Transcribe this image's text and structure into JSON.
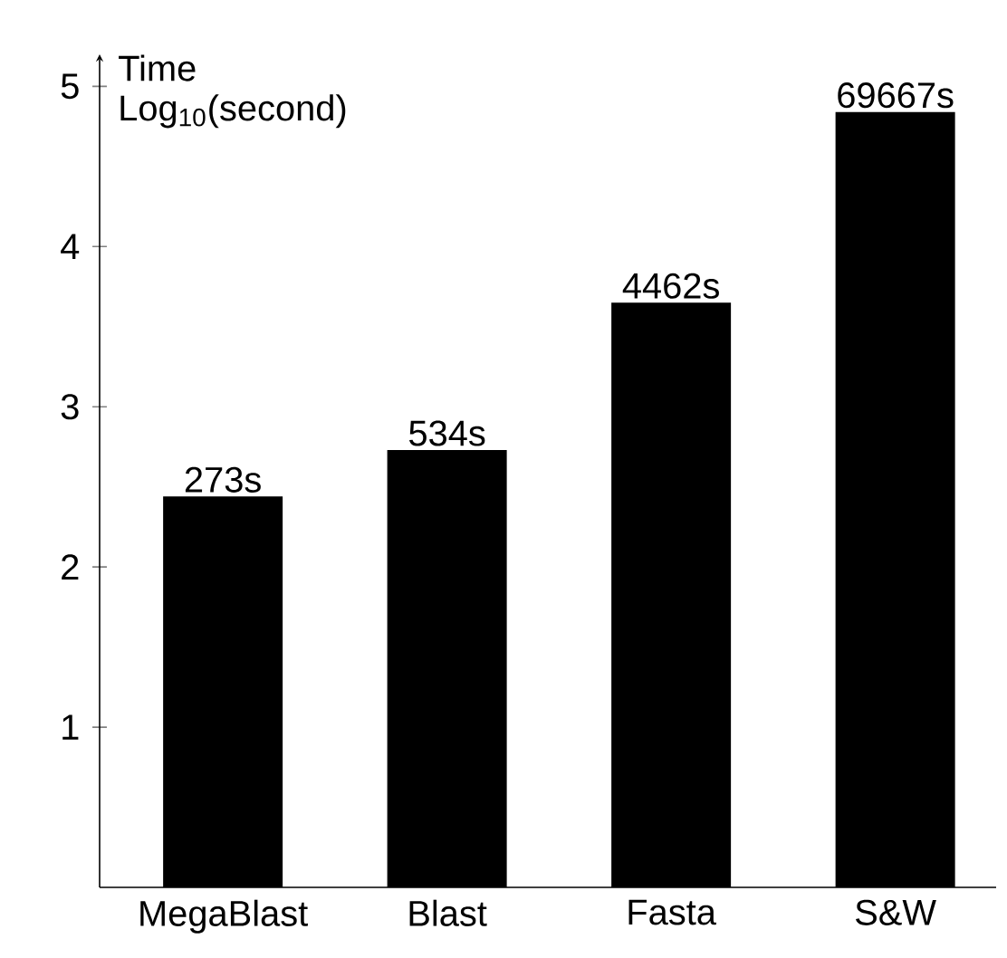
{
  "chart_data": {
    "type": "bar",
    "ylabel": "Time Log$_{10}$(second)",
    "categories": [
      "MegaBlast",
      "Blast",
      "Fasta",
      "S&W"
    ],
    "values": [
      2.44,
      2.73,
      3.65,
      4.84
    ],
    "annotations": [
      {
        "text": "273s",
        "x": "MegaBlast",
        "y": 2.44
      },
      {
        "text": "534s",
        "x": "Blast",
        "y": 2.73
      },
      {
        "text": "4462s",
        "x": "Fasta",
        "y": 3.65
      },
      {
        "text": "69667s",
        "x": "S&W",
        "y": 4.84
      }
    ],
    "color": "#000000",
    "ylim": [
      0,
      5.2
    ],
    "yticks": [
      1,
      2,
      3,
      4,
      5
    ]
  }
}
